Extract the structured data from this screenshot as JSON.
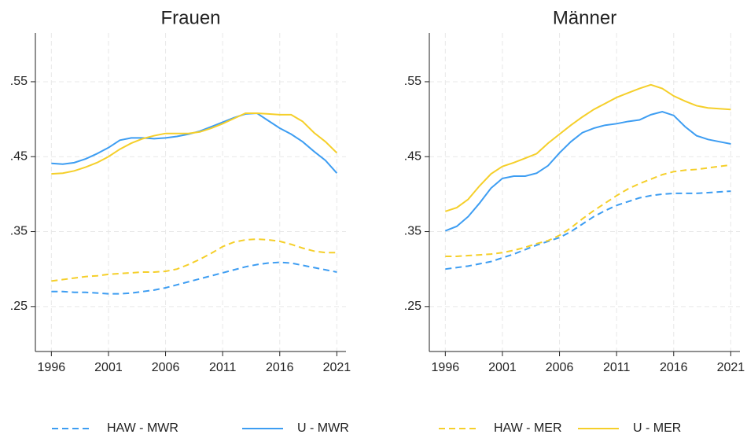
{
  "chart_data": [
    {
      "type": "line",
      "title": "Frauen",
      "x": [
        1996,
        1997,
        1998,
        1999,
        2000,
        2001,
        2002,
        2003,
        2004,
        2005,
        2006,
        2007,
        2008,
        2009,
        2010,
        2011,
        2012,
        2013,
        2014,
        2015,
        2016,
        2017,
        2018,
        2019,
        2020,
        2021
      ],
      "xlim": [
        1994.6,
        2021.8
      ],
      "xticks": [
        1996,
        2001,
        2006,
        2011,
        2016,
        2021
      ],
      "ylim": [
        0.19,
        0.615
      ],
      "yticks": [
        {
          "value": 0.25,
          "label": ".25"
        },
        {
          "value": 0.35,
          "label": ".35"
        },
        {
          "value": 0.45,
          "label": ".45"
        },
        {
          "value": 0.55,
          "label": ".55"
        }
      ],
      "grid": true,
      "legend": "bottom",
      "series": [
        {
          "name": "HAW - MWR",
          "color": "#3d9df2",
          "dashed": true,
          "values": [
            0.27,
            0.27,
            0.269,
            0.269,
            0.268,
            0.267,
            0.267,
            0.268,
            0.27,
            0.272,
            0.275,
            0.279,
            0.283,
            0.287,
            0.291,
            0.295,
            0.299,
            0.303,
            0.306,
            0.308,
            0.309,
            0.308,
            0.305,
            0.302,
            0.299,
            0.296
          ]
        },
        {
          "name": "U - MWR",
          "color": "#3d9df2",
          "dashed": false,
          "values": [
            0.441,
            0.44,
            0.442,
            0.447,
            0.454,
            0.462,
            0.472,
            0.475,
            0.475,
            0.474,
            0.475,
            0.477,
            0.48,
            0.484,
            0.49,
            0.496,
            0.502,
            0.507,
            0.508,
            0.498,
            0.488,
            0.48,
            0.47,
            0.457,
            0.445,
            0.428
          ]
        },
        {
          "name": "HAW - MER",
          "color": "#f5cf2a",
          "dashed": true,
          "values": [
            0.284,
            0.286,
            0.288,
            0.29,
            0.291,
            0.293,
            0.294,
            0.295,
            0.296,
            0.296,
            0.297,
            0.3,
            0.306,
            0.313,
            0.321,
            0.33,
            0.336,
            0.339,
            0.34,
            0.339,
            0.337,
            0.333,
            0.328,
            0.324,
            0.322,
            0.322
          ]
        },
        {
          "name": "U - MER",
          "color": "#f5cf2a",
          "dashed": false,
          "values": [
            0.427,
            0.428,
            0.431,
            0.436,
            0.442,
            0.45,
            0.46,
            0.468,
            0.474,
            0.478,
            0.481,
            0.481,
            0.481,
            0.483,
            0.488,
            0.494,
            0.501,
            0.508,
            0.508,
            0.507,
            0.506,
            0.506,
            0.497,
            0.482,
            0.47,
            0.455
          ]
        }
      ]
    },
    {
      "type": "line",
      "title": "Männer",
      "x": [
        1996,
        1997,
        1998,
        1999,
        2000,
        2001,
        2002,
        2003,
        2004,
        2005,
        2006,
        2007,
        2008,
        2009,
        2010,
        2011,
        2012,
        2013,
        2014,
        2015,
        2016,
        2017,
        2018,
        2019,
        2020,
        2021
      ],
      "xlim": [
        1994.6,
        2021.8
      ],
      "xticks": [
        1996,
        2001,
        2006,
        2011,
        2016,
        2021
      ],
      "ylim": [
        0.19,
        0.615
      ],
      "yticks": [
        {
          "value": 0.25,
          "label": ".25"
        },
        {
          "value": 0.35,
          "label": ".35"
        },
        {
          "value": 0.45,
          "label": ".45"
        },
        {
          "value": 0.55,
          "label": ".55"
        }
      ],
      "grid": true,
      "series": [
        {
          "name": "HAW - MWR",
          "color": "#3d9df2",
          "dashed": true,
          "values": [
            0.3,
            0.302,
            0.304,
            0.307,
            0.31,
            0.315,
            0.32,
            0.326,
            0.332,
            0.337,
            0.342,
            0.35,
            0.36,
            0.37,
            0.378,
            0.385,
            0.39,
            0.395,
            0.398,
            0.4,
            0.401,
            0.401,
            0.401,
            0.402,
            0.403,
            0.404
          ]
        },
        {
          "name": "U - MWR",
          "color": "#3d9df2",
          "dashed": false,
          "values": [
            0.351,
            0.357,
            0.37,
            0.388,
            0.408,
            0.421,
            0.424,
            0.424,
            0.428,
            0.438,
            0.455,
            0.47,
            0.482,
            0.488,
            0.492,
            0.494,
            0.497,
            0.499,
            0.506,
            0.51,
            0.505,
            0.49,
            0.478,
            0.473,
            0.47,
            0.467
          ]
        },
        {
          "name": "HAW - MER",
          "color": "#f5cf2a",
          "dashed": true,
          "values": [
            0.317,
            0.317,
            0.318,
            0.319,
            0.32,
            0.322,
            0.325,
            0.329,
            0.334,
            0.338,
            0.345,
            0.355,
            0.367,
            0.378,
            0.388,
            0.398,
            0.407,
            0.414,
            0.42,
            0.426,
            0.43,
            0.432,
            0.433,
            0.435,
            0.437,
            0.439
          ]
        },
        {
          "name": "U - MER",
          "color": "#f5cf2a",
          "dashed": false,
          "values": [
            0.377,
            0.382,
            0.393,
            0.411,
            0.427,
            0.437,
            0.442,
            0.448,
            0.454,
            0.468,
            0.48,
            0.492,
            0.503,
            0.513,
            0.521,
            0.529,
            0.535,
            0.541,
            0.546,
            0.541,
            0.531,
            0.524,
            0.518,
            0.515,
            0.514,
            0.513
          ]
        }
      ]
    }
  ]
}
